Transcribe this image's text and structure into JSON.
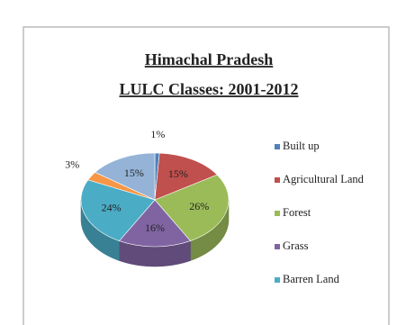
{
  "chart_data": {
    "type": "pie",
    "title": "Himachal Pradesh",
    "subtitle": "LULC Classes: 2001-2012",
    "categories": [
      "Built up",
      "Agricultural Land",
      "Forest",
      "Grass",
      "Barren Land",
      null,
      null
    ],
    "values": [
      1,
      15,
      26,
      16,
      24,
      3,
      15
    ],
    "value_labels": [
      "1%",
      "15%",
      "26%",
      "16%",
      "24%",
      "3%",
      "15%"
    ],
    "colors": [
      "#4f81bd",
      "#c0504d",
      "#9bbb59",
      "#8064a2",
      "#4bacc6",
      "#f79646",
      "#95b3d7"
    ],
    "legend": "right"
  }
}
